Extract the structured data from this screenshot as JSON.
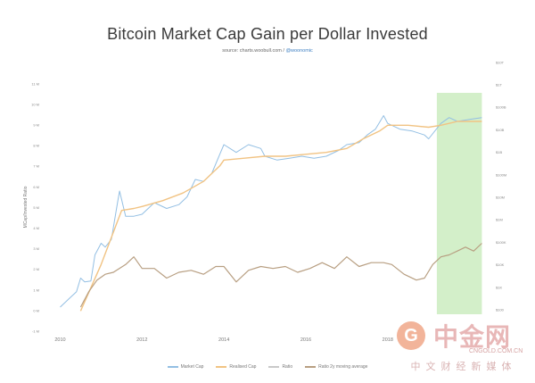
{
  "title": "Bitcoin Market Cap Gain per Dollar Invested",
  "source": {
    "prefix": "source: charts.woobull.com / ",
    "handle": "@woonomic"
  },
  "colors": {
    "market_cap": "#93bfe3",
    "realised_cap": "#f1c383",
    "ratio": "#c9c9c9",
    "ratio_ma": "#b89f82",
    "highlight": "#d3efc9"
  },
  "chart_data": {
    "type": "line",
    "title": "Bitcoin Market Cap Gain per Dollar Invested",
    "ylabel": "MCap/Invested Ratio",
    "xlim": [
      2009.75,
      2020.4
    ],
    "x_ticks": [
      "2010",
      "2012",
      "2014",
      "2016",
      "2018"
    ],
    "left_ticks": [
      "-1 M",
      "0 M",
      "1 M",
      "2 M",
      "3 M",
      "4 M",
      "5 M",
      "6 M",
      "7 M",
      "8 M",
      "9 M",
      "10 M",
      "11 M"
    ],
    "right_ticks": [
      "$100",
      "$1K",
      "$10K",
      "$100K",
      "$1M",
      "$10M",
      "$100M",
      "$1B",
      "$10B",
      "$100B",
      "$1T",
      "$10T"
    ],
    "highlight_region": [
      2019.2,
      2020.3
    ],
    "legend_position": "bottom",
    "series": [
      {
        "name": "Market Cap",
        "x": [
          2010.0,
          2010.2,
          2010.4,
          2010.5,
          2010.6,
          2010.75,
          2010.85,
          2011.0,
          2011.1,
          2011.25,
          2011.4,
          2011.45,
          2011.6,
          2011.8,
          2012.0,
          2012.3,
          2012.6,
          2012.9,
          2013.1,
          2013.3,
          2013.5,
          2013.7,
          2013.9,
          2014.0,
          2014.3,
          2014.6,
          2014.9,
          2015.0,
          2015.3,
          2015.6,
          2015.9,
          2016.2,
          2016.5,
          2016.8,
          2017.0,
          2017.3,
          2017.5,
          2017.7,
          2017.9,
          2018.0,
          2018.3,
          2018.6,
          2018.9,
          2019.0,
          2019.3,
          2019.5,
          2019.7,
          2020.0,
          2020.3
        ],
        "y": [
          0.2,
          0.6,
          1.0,
          1.7,
          1.5,
          1.55,
          2.9,
          3.5,
          3.3,
          3.7,
          5.6,
          6.2,
          4.9,
          4.9,
          5.0,
          5.6,
          5.3,
          5.5,
          5.9,
          6.8,
          6.7,
          7.1,
          8.1,
          8.6,
          8.2,
          8.6,
          8.4,
          8.0,
          7.8,
          7.9,
          8.0,
          7.9,
          8.0,
          8.3,
          8.6,
          8.7,
          9.1,
          9.4,
          10.1,
          9.7,
          9.4,
          9.3,
          9.1,
          8.9,
          9.7,
          10.0,
          9.8,
          9.9,
          10.0
        ]
      },
      {
        "name": "Realised Cap",
        "x": [
          2010.5,
          2010.75,
          2011.0,
          2011.25,
          2011.5,
          2011.8,
          2012.0,
          2012.5,
          2013.0,
          2013.5,
          2013.9,
          2014.0,
          2014.5,
          2015.0,
          2015.5,
          2016.0,
          2016.5,
          2017.0,
          2017.4,
          2017.8,
          2018.0,
          2018.5,
          2019.0,
          2019.3,
          2019.7,
          2020.0,
          2020.3
        ],
        "y": [
          0.0,
          1.2,
          2.4,
          3.8,
          5.2,
          5.3,
          5.4,
          5.7,
          6.1,
          6.7,
          7.5,
          7.8,
          7.9,
          8.0,
          8.0,
          8.1,
          8.2,
          8.4,
          8.9,
          9.3,
          9.6,
          9.6,
          9.5,
          9.6,
          9.8,
          9.8,
          9.8
        ]
      },
      {
        "name": "Ratio",
        "x": [],
        "y": []
      },
      {
        "name": "Ratio 2y moving average",
        "x": [
          2010.5,
          2010.7,
          2010.9,
          2011.1,
          2011.3,
          2011.6,
          2011.8,
          2012.0,
          2012.3,
          2012.6,
          2012.9,
          2013.2,
          2013.5,
          2013.8,
          2014.0,
          2014.3,
          2014.6,
          2014.9,
          2015.2,
          2015.5,
          2015.8,
          2016.1,
          2016.4,
          2016.7,
          2017.0,
          2017.3,
          2017.6,
          2017.9,
          2018.1,
          2018.4,
          2018.7,
          2018.9,
          2019.1,
          2019.3,
          2019.5,
          2019.7,
          2019.9,
          2020.1,
          2020.3
        ],
        "y": [
          0.2,
          1.0,
          1.6,
          1.9,
          2.0,
          2.4,
          2.8,
          2.2,
          2.2,
          1.7,
          2.0,
          2.1,
          1.9,
          2.3,
          2.3,
          1.5,
          2.1,
          2.3,
          2.2,
          2.3,
          2.0,
          2.2,
          2.5,
          2.2,
          2.8,
          2.3,
          2.5,
          2.5,
          2.4,
          1.9,
          1.6,
          1.7,
          2.4,
          2.8,
          2.9,
          3.1,
          3.3,
          3.1,
          3.5
        ]
      }
    ]
  },
  "watermark": {
    "logo_glyph": "G",
    "name": "中金网",
    "domain": "CNGOLD.COM.CN",
    "subtitle": "中文财经新媒体"
  }
}
